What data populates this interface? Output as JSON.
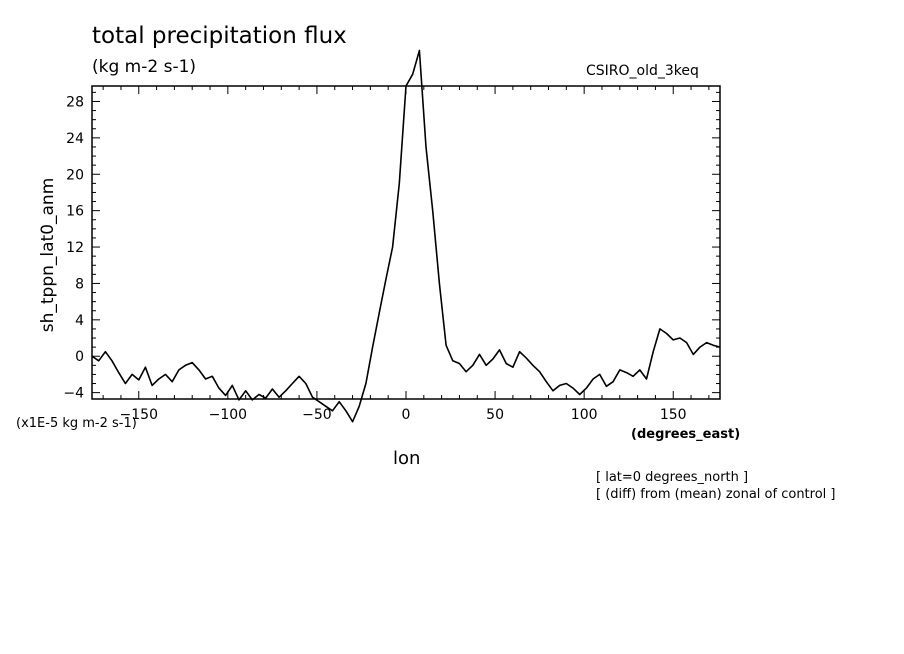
{
  "chart_data": {
    "type": "line",
    "title": "total precipitation flux",
    "subtitle": "(kg m-2 s-1)",
    "model": "CSIRO_old_3keq",
    "ylabel": "sh_tppn_lat0_anm",
    "yunits": "(x1E-5 kg m-2 s-1)",
    "xlabel": "lon",
    "xunits": "(degrees_east)",
    "notes": [
      "[ lat=0 degrees_north ]",
      "[ (diff) from (mean) zonal of control ]"
    ],
    "xlim": [
      -176.25,
      176.25
    ],
    "ylim": [
      -4.7,
      29.7
    ],
    "xticks": [
      -150,
      -100,
      -50,
      0,
      50,
      100,
      150
    ],
    "xtick_labels": [
      "-150",
      "-100",
      "-50",
      "0",
      "50",
      "100",
      "150"
    ],
    "yticks": [
      -4,
      0,
      4,
      8,
      12,
      16,
      20,
      24,
      28
    ],
    "ytick_labels": [
      "-4",
      "0",
      "4",
      "8",
      "12",
      "16",
      "20",
      "24",
      "28"
    ],
    "grid": false,
    "series": [
      {
        "x": [
          -176.25,
          -172.5,
          -168.75,
          -165,
          -161.25,
          -157.5,
          -153.75,
          -150,
          -146.25,
          -142.5,
          -138.75,
          -135,
          -131.25,
          -127.5,
          -123.75,
          -120,
          -116.25,
          -112.5,
          -108.75,
          -105,
          -101.25,
          -97.5,
          -93.75,
          -90,
          -86.25,
          -82.5,
          -78.75,
          -75,
          -71.25,
          -67.5,
          -63.75,
          -60,
          -56.25,
          -52.5,
          -48.75,
          -45,
          -41.25,
          -37.5,
          -33.75,
          -30,
          -26.25,
          -22.5,
          -18.75,
          -15,
          -11.25,
          -7.5,
          -3.75,
          0,
          3.75,
          7.5,
          11.25,
          15,
          18.75,
          22.5,
          26.25,
          30,
          33.75,
          37.5,
          41.25,
          45,
          48.75,
          52.5,
          56.25,
          60,
          63.75,
          67.5,
          71.25,
          75,
          78.75,
          82.5,
          86.25,
          90,
          93.75,
          97.5,
          101.25,
          105,
          108.75,
          112.5,
          116.25,
          120,
          123.75,
          127.5,
          131.25,
          135,
          138.75,
          142.5,
          146.25,
          150,
          153.75,
          157.5,
          161.25,
          165,
          168.75,
          172.5,
          176.25
        ],
        "values": [
          0,
          -0.5,
          0.5,
          -0.5,
          -1.8,
          -3.0,
          -2.0,
          -2.6,
          -1.2,
          -3.2,
          -2.5,
          -2.0,
          -2.8,
          -1.5,
          -1.0,
          -0.7,
          -1.5,
          -2.5,
          -2.2,
          -3.5,
          -4.3,
          -3.2,
          -4.8,
          -3.8,
          -4.8,
          -4.2,
          -4.6,
          -3.6,
          -4.5,
          -3.8,
          -3.0,
          -2.2,
          -3.0,
          -4.5,
          -5.0,
          -5.5,
          -6.0,
          -5.0,
          -6.0,
          -7.2,
          -5.5,
          -3.0,
          1.0,
          4.8,
          8.5,
          12.0,
          19.0,
          29.7,
          31.0,
          33.6,
          23.0,
          16.0,
          8.0,
          1.2,
          -0.5,
          -0.8,
          -1.7,
          -1.0,
          0.2,
          -1.0,
          -0.3,
          0.7,
          -0.8,
          -1.2,
          0.5,
          -0.2,
          -1.0,
          -1.7,
          -2.8,
          -3.8,
          -3.2,
          -3.0,
          -3.5,
          -4.2,
          -3.5,
          -2.5,
          -2.0,
          -3.3,
          -2.8,
          -1.5,
          -1.8,
          -2.2,
          -1.5,
          -2.5,
          0.5,
          3.0,
          2.5,
          1.8,
          2.0,
          1.5,
          0.2,
          1.0,
          1.5,
          1.2,
          1.0
        ]
      }
    ]
  }
}
